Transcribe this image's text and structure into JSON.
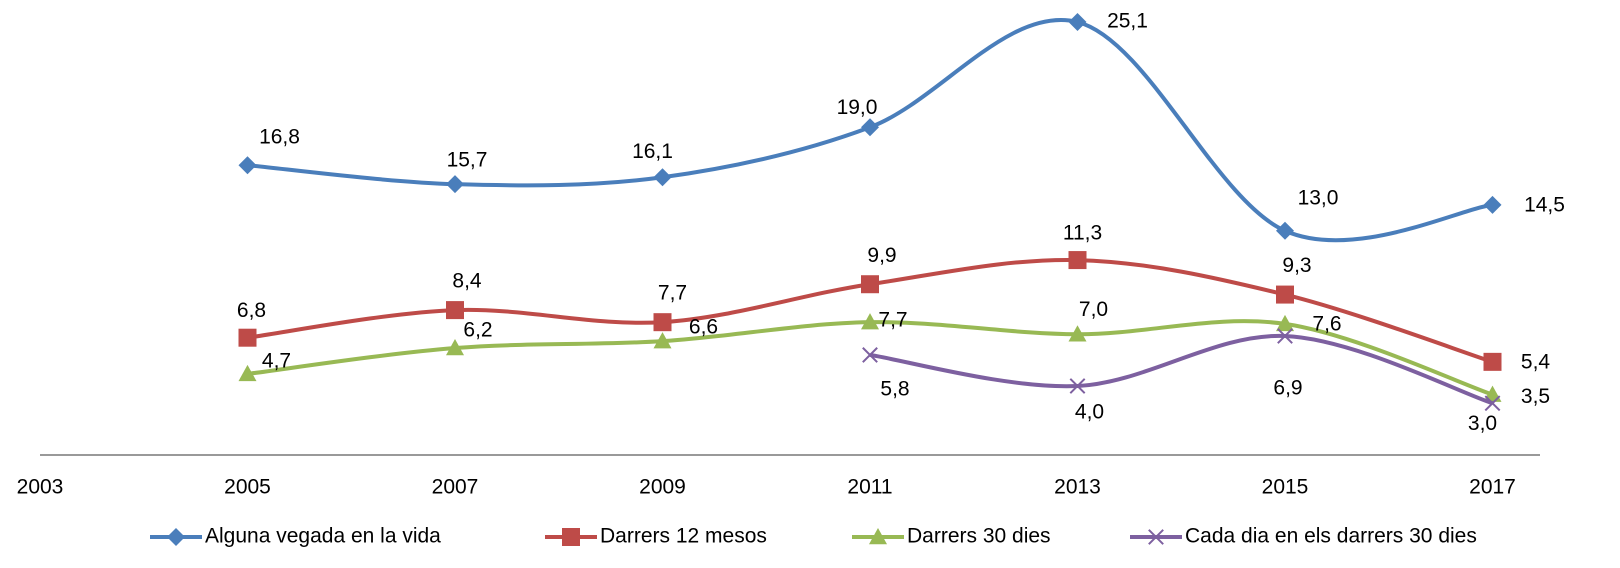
{
  "chart_data": {
    "type": "line",
    "categories": [
      "2003",
      "2005",
      "2007",
      "2009",
      "2011",
      "2013",
      "2015",
      "2017"
    ],
    "ylim": [
      0,
      26
    ],
    "series": [
      {
        "name": "Alguna vegada en la vida",
        "color": "#4a7ebb",
        "marker": "diamond",
        "values": [
          null,
          16.8,
          15.7,
          16.1,
          19.0,
          25.1,
          13.0,
          14.5
        ],
        "value_labels": [
          null,
          "16,8",
          "15,7",
          "16,1",
          "19,0",
          "25,1",
          "13,0",
          "14,5"
        ]
      },
      {
        "name": "Darrers 12 mesos",
        "color": "#be4b48",
        "marker": "square",
        "values": [
          null,
          6.8,
          8.4,
          7.7,
          9.9,
          11.3,
          9.3,
          5.4
        ],
        "value_labels": [
          null,
          "6,8",
          "8,4",
          "7,7",
          "9,9",
          "11,3",
          "9,3",
          "5,4"
        ]
      },
      {
        "name": "Darrers 30 dies",
        "color": "#98b954",
        "marker": "triangle",
        "values": [
          null,
          4.7,
          6.2,
          6.6,
          7.7,
          7.0,
          7.6,
          3.5
        ],
        "value_labels": [
          null,
          "4,7",
          "6,2",
          "6,6",
          "7,7",
          "7,0",
          "7,6",
          "3,5"
        ]
      },
      {
        "name": "Cada dia en els darrers 30 dies",
        "color": "#7d60a0",
        "marker": "x",
        "values": [
          null,
          null,
          null,
          null,
          5.8,
          4.0,
          6.9,
          3.0
        ],
        "value_labels": [
          null,
          null,
          null,
          null,
          "5,8",
          "4,0",
          "6,9",
          "3,0"
        ]
      }
    ],
    "legend": "bottom"
  }
}
